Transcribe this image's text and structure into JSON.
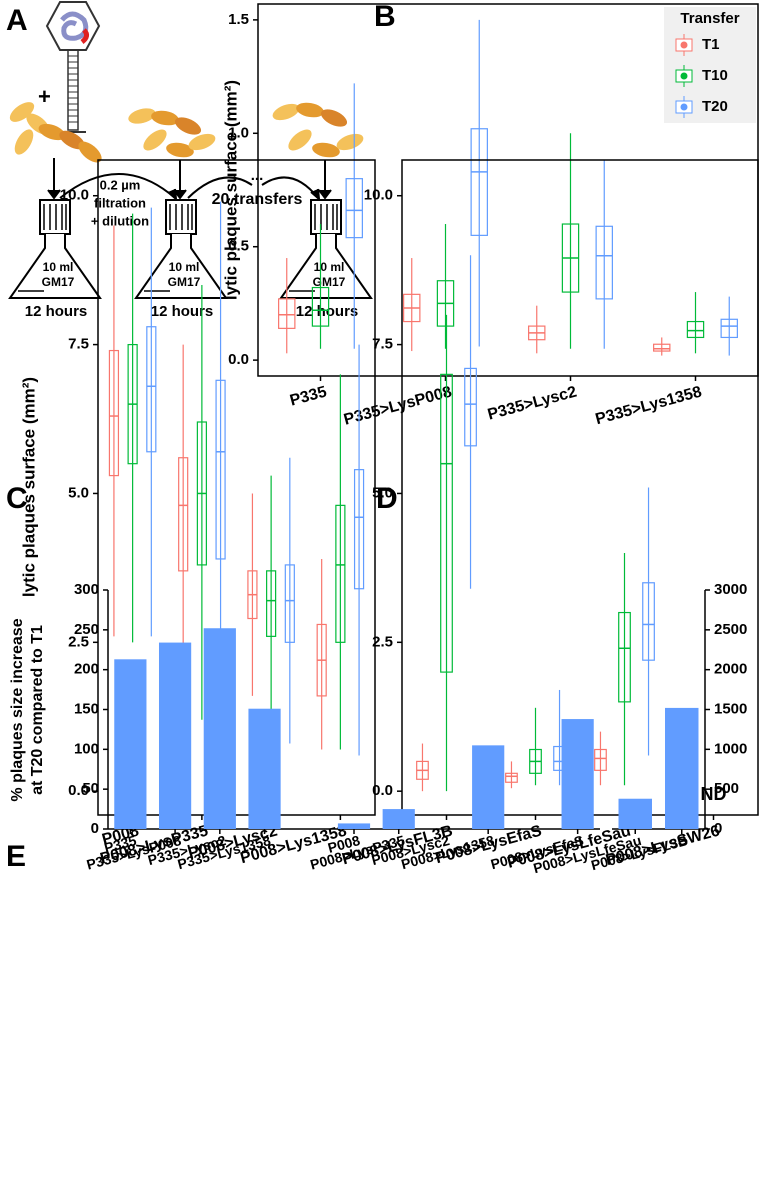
{
  "panel_letters": [
    "A",
    "B",
    "C",
    "D",
    "E"
  ],
  "panel_a": {
    "plus": "+",
    "filter_lines": [
      "0.2 µm",
      "filtration",
      "+ dilution"
    ],
    "dots": "...",
    "transfers": "20 transfers",
    "flasks": [
      {
        "volume": "10 ml",
        "medium": "GM17",
        "time": "12 hours"
      },
      {
        "volume": "10 ml",
        "medium": "GM17",
        "time": "12 hours"
      },
      {
        "volume": "10 ml",
        "medium": "GM17",
        "time": "12 hours"
      }
    ]
  },
  "chart_data": [
    {
      "type": "box",
      "ylabel": "lytic plaques surface (mm²)",
      "categories": [
        "P335",
        "P335>LysP008",
        "P335>Lysc2",
        "P335>Lys1358"
      ],
      "series": [
        {
          "name": "T1",
          "color": "#f8766d",
          "values": [
            [
              0.03,
              0.14,
              0.2,
              0.27,
              0.45
            ],
            [
              0.04,
              0.17,
              0.23,
              0.29,
              0.45
            ],
            [
              0.03,
              0.09,
              0.12,
              0.15,
              0.24
            ],
            [
              0.02,
              0.04,
              0.05,
              0.07,
              0.1
            ]
          ]
        },
        {
          "name": "T10",
          "color": "#00ba38",
          "values": [
            [
              0.05,
              0.15,
              0.22,
              0.32,
              0.6
            ],
            [
              0.05,
              0.15,
              0.25,
              0.35,
              0.6
            ],
            [
              0.05,
              0.3,
              0.45,
              0.6,
              1.0
            ],
            [
              0.03,
              0.1,
              0.13,
              0.17,
              0.3
            ]
          ]
        },
        {
          "name": "T20",
          "color": "#619cff",
          "values": [
            [
              0.05,
              0.54,
              0.66,
              0.8,
              1.22
            ],
            [
              0.06,
              0.55,
              0.83,
              1.02,
              1.5
            ],
            [
              0.05,
              0.27,
              0.46,
              0.59,
              0.88
            ],
            [
              0.02,
              0.1,
              0.15,
              0.18,
              0.28
            ]
          ]
        }
      ],
      "ylim": [
        -0.07,
        1.57
      ],
      "yticks": [
        {
          "value": 0,
          "label": "0.0"
        },
        {
          "value": 0.5,
          "label": "0.5"
        },
        {
          "value": 1,
          "label": "1.0"
        },
        {
          "value": 1.5,
          "label": "1.5"
        }
      ],
      "legend": {
        "title": "Transfer",
        "position": "upper right"
      }
    },
    {
      "type": "box",
      "ylabel": "lytic plaques surface (mm²)",
      "categories": [
        "P008",
        "P008>LysP335",
        "P008>Lysc2",
        "P008>Lys1358"
      ],
      "series": [
        {
          "name": "T1",
          "color": "#f8766d",
          "values": [
            [
              2.6,
              5.3,
              6.3,
              7.4,
              9.5
            ],
            [
              1.1,
              3.7,
              4.8,
              5.6,
              7.5
            ],
            [
              1.6,
              2.9,
              3.3,
              3.7,
              5.0
            ],
            [
              0.7,
              1.6,
              2.2,
              2.8,
              3.9
            ]
          ]
        },
        {
          "name": "T10",
          "color": "#00ba38",
          "values": [
            [
              2.5,
              5.5,
              6.5,
              7.5,
              9.7
            ],
            [
              1.2,
              3.8,
              5.0,
              6.2,
              8.5
            ],
            [
              0.9,
              2.6,
              3.2,
              3.7,
              5.3
            ],
            [
              0.7,
              2.5,
              3.8,
              4.8,
              7.0
            ]
          ]
        },
        {
          "name": "T20",
          "color": "#619cff",
          "values": [
            [
              2.6,
              5.7,
              6.8,
              7.8,
              9.8
            ],
            [
              1.0,
              3.9,
              5.7,
              6.9,
              9.9
            ],
            [
              0.8,
              2.5,
              3.2,
              3.8,
              5.6
            ],
            [
              0.6,
              3.4,
              4.6,
              5.4,
              7.5
            ]
          ]
        }
      ],
      "ylim": [
        -0.4,
        10.6
      ],
      "yticks": [
        {
          "value": 0,
          "label": "0.0"
        },
        {
          "value": 2.5,
          "label": "2.5"
        },
        {
          "value": 5,
          "label": "5.0"
        },
        {
          "value": 7.5,
          "label": "7.5"
        },
        {
          "value": 10,
          "label": "10.0"
        }
      ]
    },
    {
      "type": "box",
      "categories": [
        "P008>LysFL3B",
        "P008>LysEfaS",
        "P008>LysLfeSau",
        "P008>LysSW26"
      ],
      "series": [
        {
          "name": "T1",
          "color": "#f8766d",
          "values": [
            [
              0.0,
              0.2,
              0.35,
              0.5,
              0.8
            ],
            [
              0.05,
              0.15,
              0.25,
              0.3,
              0.5
            ],
            [
              0.1,
              0.35,
              0.55,
              0.7,
              1.0
            ],
            null
          ]
        },
        {
          "name": "T10",
          "color": "#00ba38",
          "values": [
            [
              0.0,
              2.0,
              5.5,
              7.0,
              8.0
            ],
            [
              0.1,
              0.3,
              0.5,
              0.7,
              1.4
            ],
            [
              0.1,
              1.5,
              2.4,
              3.0,
              4.0
            ],
            null
          ]
        },
        {
          "name": "T20",
          "color": "#619cff",
          "values": [
            [
              3.4,
              5.8,
              6.5,
              7.1,
              9.0
            ],
            [
              0.1,
              0.35,
              0.5,
              0.75,
              1.7
            ],
            [
              0.6,
              2.2,
              2.8,
              3.5,
              5.1
            ],
            null
          ]
        }
      ],
      "ylim": [
        -0.4,
        10.6
      ],
      "yticks": [
        {
          "value": 0,
          "label": "0.0"
        },
        {
          "value": 2.5,
          "label": "2.5"
        },
        {
          "value": 5,
          "label": "5.0"
        },
        {
          "value": 7.5,
          "label": "7.5"
        },
        {
          "value": 10,
          "label": "10.0"
        }
      ],
      "annotation": "ND"
    },
    {
      "type": "bar",
      "ylabel": [
        "% plaques size increase",
        "at T20 compared to T1"
      ],
      "categories": [
        "P335",
        "P335>LysP008",
        "P335>Lysc2",
        "P335>Lys1358",
        null,
        "P008",
        "P008>LysP335",
        "P008>Lysc2",
        "P008>Lys1358",
        null,
        "P008>LysEfaS"
      ],
      "values": [
        213,
        234,
        252,
        151,
        null,
        7,
        25,
        0,
        105,
        null,
        138
      ],
      "color": "#619cff",
      "ylim": [
        0,
        300
      ],
      "yticks": [
        0,
        50,
        100,
        150,
        200,
        250,
        300
      ]
    },
    {
      "type": "bar",
      "categories": [
        "P008>LysLfeSau",
        "P008>LysFL3B"
      ],
      "values": [
        380,
        1520
      ],
      "color": "#619cff",
      "y2lim": [
        0,
        3000
      ],
      "y2ticks": [
        0,
        500,
        1000,
        1500,
        2000,
        2500,
        3000
      ]
    }
  ]
}
